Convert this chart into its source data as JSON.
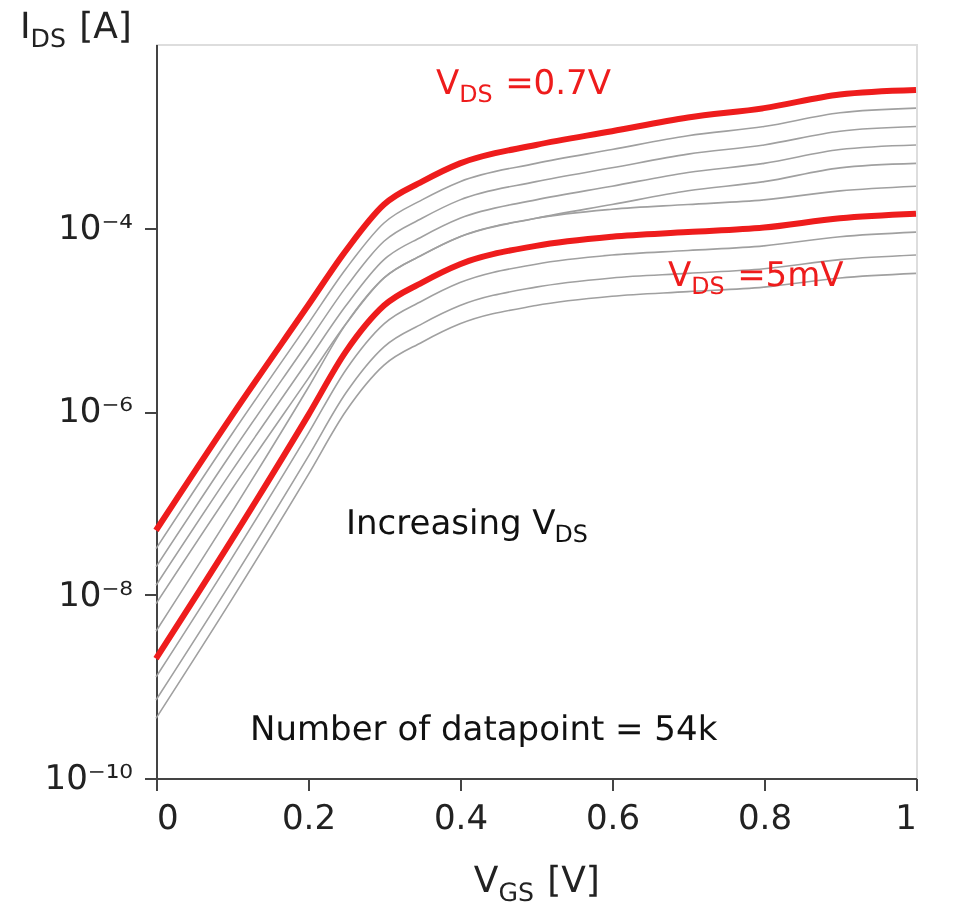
{
  "chart_data": {
    "type": "line",
    "xlabel": "V$_{GS}$ [V]",
    "ylabel": "I$_{DS}$ [A]",
    "x": [
      0,
      0.1,
      0.2,
      0.25,
      0.3,
      0.35,
      0.4,
      0.5,
      0.6,
      0.7,
      0.8,
      0.9,
      1
    ],
    "xlim": [
      0,
      1
    ],
    "xticks": [
      0,
      0.2,
      0.4,
      0.6,
      0.8,
      1
    ],
    "ylim": [
      1e-10,
      0.01
    ],
    "log": "y",
    "yticks": [
      {
        "value": 1e-10,
        "label": "10⁻¹⁰"
      },
      {
        "value": 1e-08,
        "label": "10⁻⁸"
      },
      {
        "value": 1e-06,
        "label": "10⁻⁶"
      },
      {
        "value": 0.0001,
        "label": "10⁻⁴"
      }
    ],
    "grid": false,
    "legend": false,
    "line_style": "solid",
    "marker": "none",
    "series": [
      {
        "color": "#a0a0a0",
        "values": [
          3.16e-08,
          5.62e-07,
          8.91e-06,
          3.55e-05,
          0.000112,
          0.0002,
          0.000316,
          0.0005,
          0.000708,
          0.001,
          0.00126,
          0.00178,
          0.002
        ]
      },
      {
        "color": "#a0a0a0",
        "values": [
          2e-08,
          3.55e-07,
          5.62e-06,
          2.24e-05,
          7.08e-05,
          0.000126,
          0.0002,
          0.000316,
          0.000447,
          0.000631,
          0.000794,
          0.00112,
          0.00126
        ]
      },
      {
        "color": "#a0a0a0",
        "values": [
          1.26e-08,
          2.24e-07,
          3.55e-06,
          1.41e-05,
          4.47e-05,
          7.94e-05,
          0.000126,
          0.0002,
          0.000282,
          0.000398,
          0.0005,
          0.000708,
          0.000794
        ]
      },
      {
        "color": "#a0a0a0",
        "values": [
          7.94e-09,
          1.41e-07,
          2.24e-06,
          8.91e-06,
          2.82e-05,
          5e-05,
          7.94e-05,
          0.000126,
          0.000178,
          0.000251,
          0.000316,
          0.000447,
          0.0005
        ]
      },
      {
        "color": "#a0a0a0",
        "values": [
          3.98e-09,
          7.94e-08,
          1.78e-06,
          8.91e-06,
          2.82e-05,
          5.01e-05,
          7.94e-05,
          0.000126,
          0.000158,
          0.000178,
          0.0002,
          0.000251,
          0.000282
        ]
      },
      {
        "color": "#a0a0a0",
        "values": [
          1.26e-09,
          2.51e-08,
          5.62e-07,
          2.82e-06,
          8.91e-06,
          1.58e-05,
          2.51e-05,
          3.98e-05,
          5.01e-05,
          5.62e-05,
          6.31e-05,
          7.94e-05,
          8.91e-05
        ]
      },
      {
        "color": "#a0a0a0",
        "values": [
          7.08e-10,
          1.41e-08,
          3.16e-07,
          1.58e-06,
          5.01e-06,
          8.91e-06,
          1.41e-05,
          2.24e-05,
          2.82e-05,
          3.16e-05,
          3.55e-05,
          4.47e-05,
          5.01e-05
        ]
      },
      {
        "color": "#a0a0a0",
        "values": [
          4.47e-10,
          8.91e-09,
          2e-07,
          1e-06,
          3.16e-06,
          5.62e-06,
          8.91e-06,
          1.41e-05,
          1.78e-05,
          2e-05,
          2.24e-05,
          2.82e-05,
          3.16e-05
        ]
      },
      {
        "name": "V$_{DS}$ =0.7V",
        "color": "#ee1c1c",
        "values": [
          5e-08,
          8.9e-07,
          1.41e-05,
          5.62e-05,
          0.000178,
          0.000316,
          0.0005,
          0.000794,
          0.00112,
          0.00158,
          0.002,
          0.00282,
          0.00316
        ]
      },
      {
        "name": "V$_{DS}$ =5mV",
        "color": "#ee1c1c",
        "values": [
          2e-09,
          3.98e-08,
          8.91e-07,
          4.47e-06,
          1.41e-05,
          2.51e-05,
          3.98e-05,
          6.31e-05,
          7.94e-05,
          8.91e-05,
          0.0001,
          0.000126,
          0.000141
        ]
      }
    ],
    "annotations": [
      "Increasing V$_{DS}$",
      "Number of datapoint = 54k"
    ]
  }
}
